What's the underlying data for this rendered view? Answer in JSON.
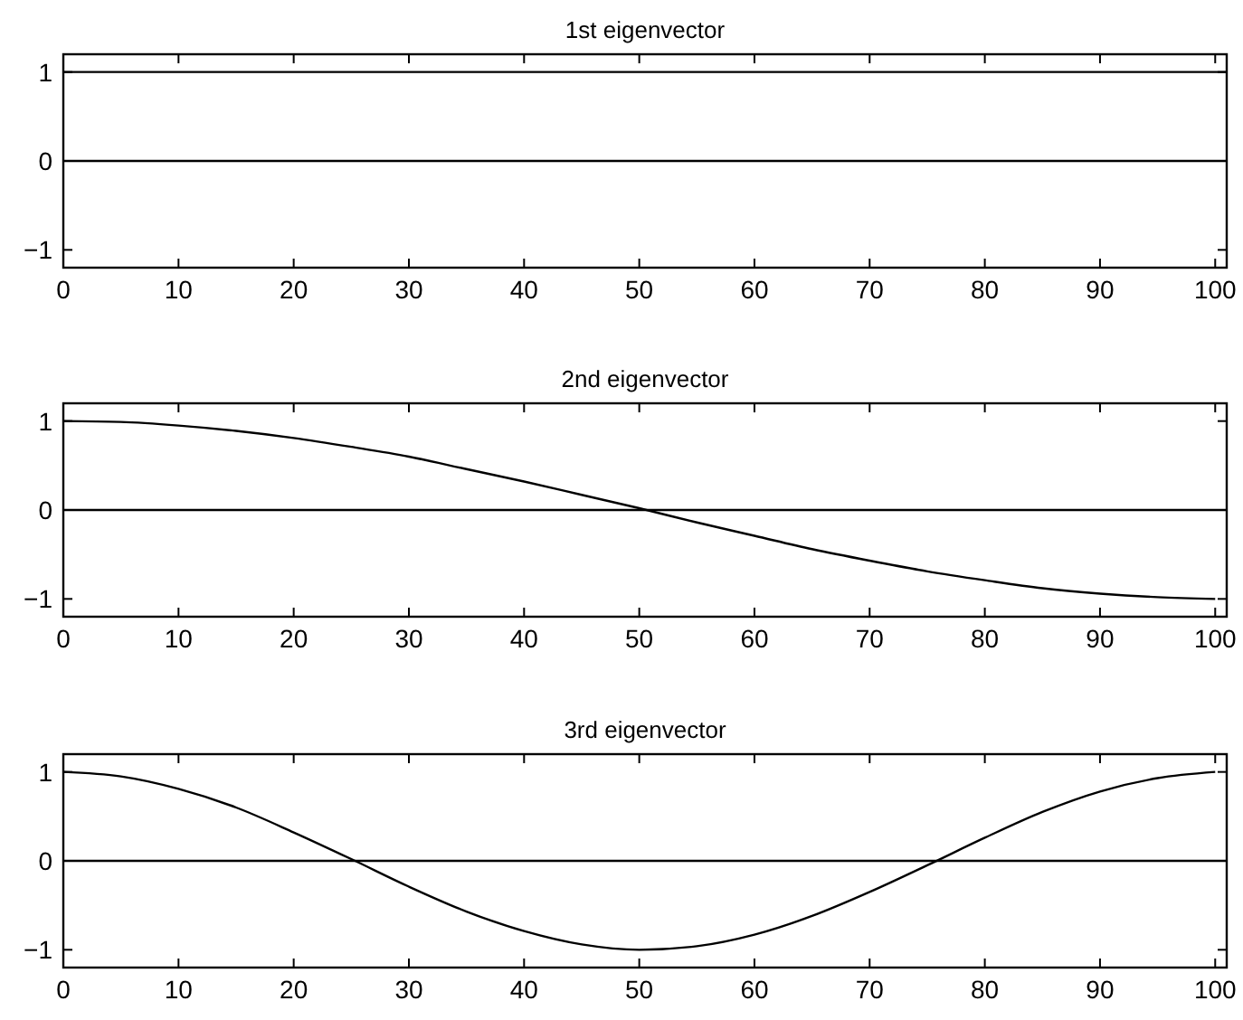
{
  "chart_data": [
    {
      "type": "line",
      "title": "1st eigenvector",
      "x": [
        0,
        101
      ],
      "values": [
        1,
        1
      ],
      "color": "#000000",
      "xlim": [
        0,
        101
      ],
      "xticks": [
        0,
        10,
        20,
        30,
        40,
        50,
        60,
        70,
        80,
        90,
        100
      ],
      "ylim": [
        -1.2,
        1.2
      ],
      "yticks": [
        -1,
        0,
        1
      ],
      "ref_lines": [
        {
          "axis": "y",
          "value": 0
        }
      ],
      "grid": false
    },
    {
      "type": "line",
      "title": "2nd eigenvector",
      "x": [
        0,
        5,
        10,
        15,
        20,
        25,
        30,
        35,
        40,
        45,
        50,
        55,
        60,
        65,
        70,
        75,
        80,
        85,
        90,
        95,
        100
      ],
      "values": [
        1,
        0.99,
        0.95,
        0.89,
        0.81,
        0.71,
        0.6,
        0.46,
        0.32,
        0.17,
        0.02,
        -0.14,
        -0.29,
        -0.44,
        -0.57,
        -0.69,
        -0.79,
        -0.88,
        -0.94,
        -0.98,
        -1
      ],
      "color": "#000000",
      "xlim": [
        0,
        101
      ],
      "xticks": [
        0,
        10,
        20,
        30,
        40,
        50,
        60,
        70,
        80,
        90,
        100
      ],
      "ylim": [
        -1.2,
        1.2
      ],
      "yticks": [
        -1,
        0,
        1
      ],
      "ref_lines": [
        {
          "axis": "y",
          "value": 0
        }
      ],
      "grid": false
    },
    {
      "type": "line",
      "title": "3rd eigenvector",
      "x": [
        0,
        5,
        10,
        15,
        20,
        25,
        30,
        35,
        40,
        45,
        50,
        55,
        60,
        65,
        70,
        75,
        80,
        85,
        90,
        95,
        100
      ],
      "values": [
        1,
        0.95,
        0.81,
        0.6,
        0.32,
        0.02,
        -0.29,
        -0.57,
        -0.79,
        -0.94,
        -1,
        -0.96,
        -0.83,
        -0.62,
        -0.35,
        -0.05,
        0.26,
        0.55,
        0.78,
        0.93,
        1
      ],
      "color": "#000000",
      "xlim": [
        0,
        101
      ],
      "xticks": [
        0,
        10,
        20,
        30,
        40,
        50,
        60,
        70,
        80,
        90,
        100
      ],
      "ylim": [
        -1.2,
        1.2
      ],
      "yticks": [
        -1,
        0,
        1
      ],
      "ref_lines": [
        {
          "axis": "y",
          "value": 0
        }
      ],
      "grid": false
    }
  ]
}
